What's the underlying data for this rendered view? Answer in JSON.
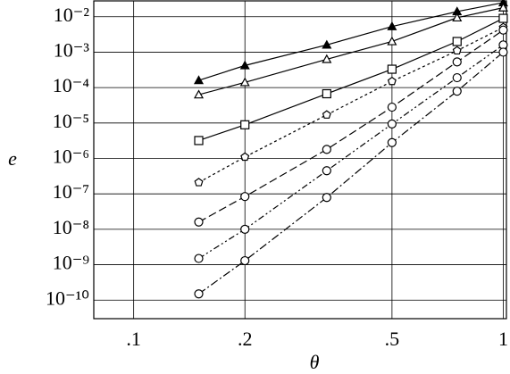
{
  "chart_data": {
    "type": "line",
    "xlabel": "θ",
    "ylabel": "e",
    "xscale": "log",
    "yscale": "log",
    "grid": true,
    "xlim": [
      0.078,
      1.02
    ],
    "ylim": [
      3e-11,
      0.028
    ],
    "xticks": [
      {
        "value": 0.1,
        "label": ".1"
      },
      {
        "value": 0.2,
        "label": ".2"
      },
      {
        "value": 0.5,
        "label": ".5"
      },
      1
    ],
    "yticks": [
      {
        "value": 1e-10,
        "label": "10⁻¹⁰"
      },
      {
        "value": 1e-09,
        "label": "10⁻⁹"
      },
      {
        "value": 1e-08,
        "label": "10⁻⁸"
      },
      {
        "value": 1e-07,
        "label": "10⁻⁷"
      },
      {
        "value": 1e-06,
        "label": "10⁻⁶"
      },
      {
        "value": 1e-05,
        "label": "10⁻⁵"
      },
      {
        "value": 0.0001,
        "label": "10⁻⁴"
      },
      {
        "value": 0.001,
        "label": "10⁻³"
      },
      {
        "value": 0.01,
        "label": "10⁻²"
      }
    ],
    "x": [
      0.15,
      0.2,
      0.333,
      0.5,
      0.75,
      1
    ],
    "series": [
      {
        "color": "#000000",
        "marker": "triangle-filled",
        "dash": "solid",
        "values": [
          0.00016,
          0.00042,
          0.0016,
          0.0053,
          0.014,
          0.025
        ]
      },
      {
        "color": "#000000",
        "marker": "triangle",
        "dash": "solid",
        "values": [
          6.3e-05,
          0.00014,
          0.00063,
          0.002,
          0.0094,
          0.018
        ]
      },
      {
        "color": "#000000",
        "marker": "square",
        "dash": "solid",
        "values": [
          3.2e-06,
          8.9e-06,
          6.7e-05,
          0.00033,
          0.002,
          0.009
        ]
      },
      {
        "color": "#000000",
        "marker": "pentagon",
        "dash": "dotted",
        "values": [
          2.1e-07,
          1.1e-06,
          1.7e-05,
          0.00015,
          0.0011,
          0.005
        ]
      },
      {
        "color": "#000000",
        "marker": "circle",
        "dash": "dashed",
        "values": [
          1.6e-08,
          8.4e-08,
          1.8e-06,
          2.8e-05,
          0.00053,
          0.0042
        ]
      },
      {
        "color": "#000000",
        "marker": "circle",
        "dash": "dashdotdot",
        "values": [
          1.5e-09,
          1e-08,
          4.5e-07,
          9.4e-06,
          0.00019,
          0.0016
        ]
      },
      {
        "color": "#000000",
        "marker": "circle",
        "dash": "dashdot",
        "values": [
          1.5e-10,
          1.3e-09,
          7.9e-08,
          2.8e-06,
          7.9e-05,
          0.001
        ]
      }
    ]
  }
}
